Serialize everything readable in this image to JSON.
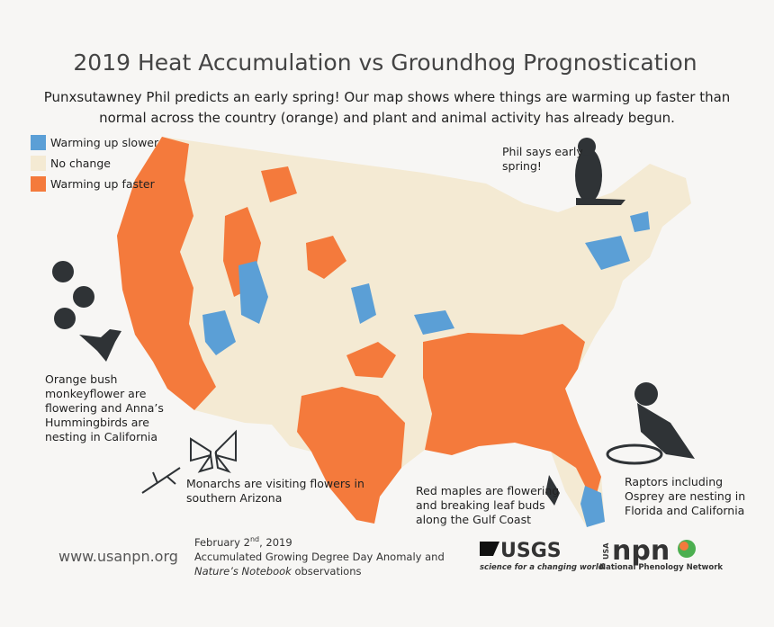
{
  "title": "2019 Heat Accumulation vs Groundhog Prognostication",
  "subtitle": [
    "Punxsutawney Phil predicts an early spring! Our map shows where things are warming up faster than",
    "normal across the country (orange) and plant and animal activity has already begun."
  ],
  "legend": [
    {
      "label": "Warming up slower",
      "color": "#5b9fd6"
    },
    {
      "label": "No change",
      "color": "#f4ead3"
    },
    {
      "label": "Warming up faster",
      "color": "#f47a3c"
    }
  ],
  "annotations": {
    "groundhog": [
      "Phil says early",
      "spring!"
    ],
    "california": [
      "Orange bush",
      "monkeyflower are",
      "flowering and Anna’s",
      "Hummingbirds are",
      "nesting in California"
    ],
    "arizona": [
      "Monarchs are visiting flowers in",
      "southern Arizona"
    ],
    "gulf": [
      "Red maples are flowering",
      "and breaking leaf buds",
      "along the Gulf Coast"
    ],
    "florida": [
      "Raptors including",
      "Osprey are nesting in",
      "Florida and California"
    ]
  },
  "footer": {
    "url": "www.usanpn.org",
    "date": {
      "text": "February 2",
      "suffix": "nd",
      "year": ", 2019"
    },
    "line2": "Accumulated Growing Degree Day Anomaly and",
    "line3": {
      "italic": "Nature’s Notebook",
      "text": " observations"
    }
  },
  "logos": {
    "usgs": {
      "name": "USGS",
      "tagline": "science for a changing world"
    },
    "npn": {
      "prefix": "USA",
      "name": "npn",
      "full": "National Phenology Network"
    }
  }
}
